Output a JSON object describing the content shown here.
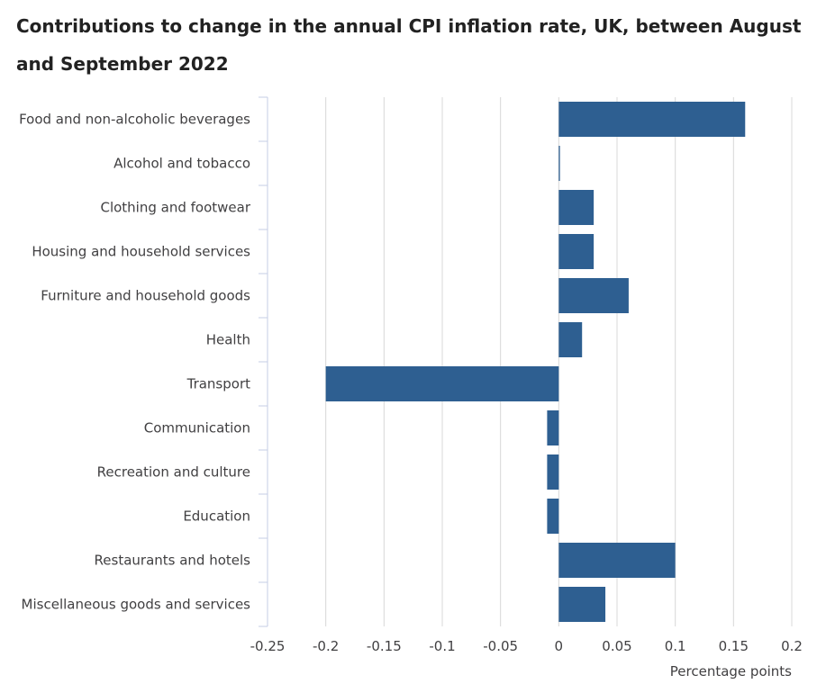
{
  "chart_data": {
    "type": "bar",
    "orientation": "horizontal",
    "title": "Contributions to change in the annual CPI inflation rate, UK, between August and September 2022",
    "xlabel": "Percentage points",
    "ylabel": "",
    "categories": [
      "Food and non-alcoholic beverages",
      "Alcohol and tobacco",
      "Clothing and footwear",
      "Housing and household services",
      "Furniture and household goods",
      "Health",
      "Transport",
      "Communication",
      "Recreation and culture",
      "Education",
      "Restaurants and hotels",
      "Miscellaneous goods and services"
    ],
    "values": [
      0.16,
      0.001,
      0.03,
      0.03,
      0.06,
      0.02,
      -0.2,
      -0.01,
      -0.01,
      -0.01,
      0.1,
      0.04
    ],
    "xlim": [
      -0.25,
      0.2
    ],
    "xticks": [
      -0.25,
      -0.2,
      -0.15,
      -0.1,
      -0.05,
      0,
      0.05,
      0.1,
      0.15,
      0.2
    ],
    "xtick_labels": [
      "-0.25",
      "-0.2",
      "-0.15",
      "-0.1",
      "-0.05",
      "0",
      "0.05",
      "0.1",
      "0.15",
      "0.2"
    ],
    "grid": "vertical",
    "legend": "none",
    "colors": {
      "bar": "#2e5f91",
      "grid": "#d8d8d8",
      "axis": "#c6cde6",
      "text": "#414042"
    }
  }
}
